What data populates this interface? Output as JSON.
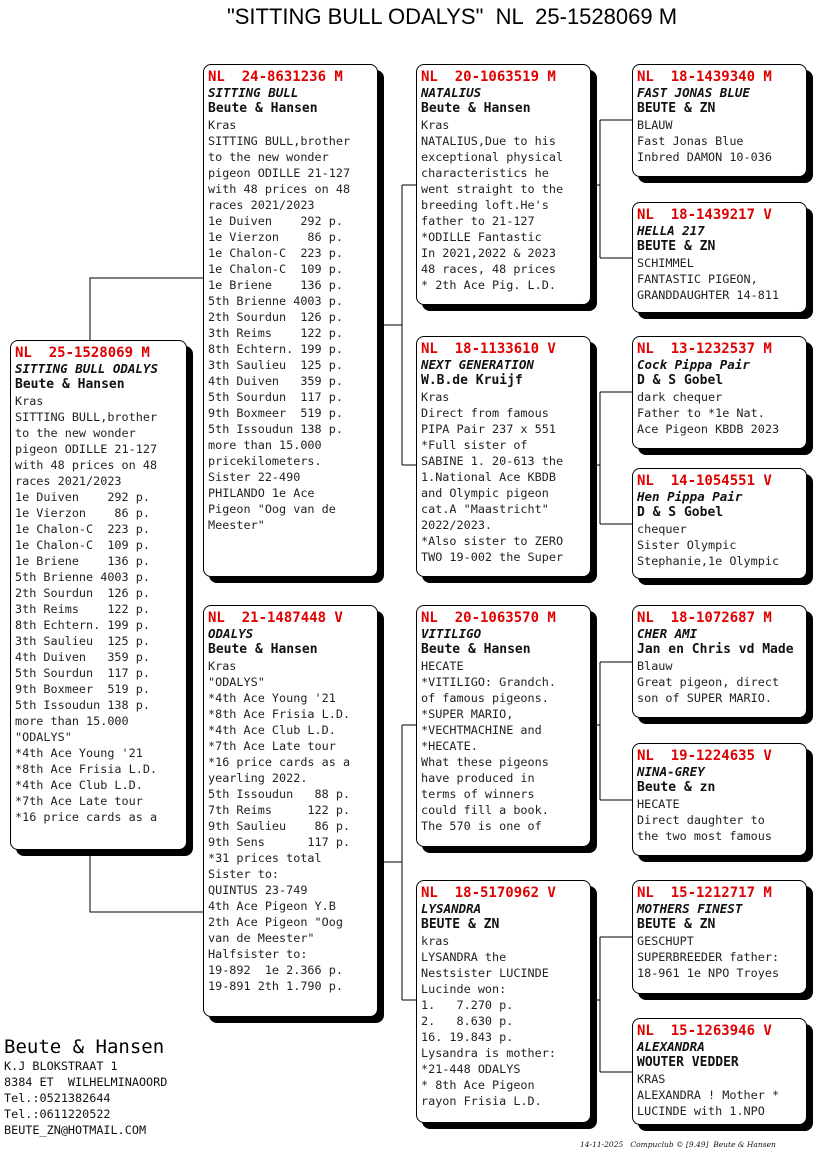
{
  "title": "\"SITTING BULL ODALYS\"  NL  25-1528069 M",
  "pigeons": [
    {
      "ring": "NL  25-1528069 M",
      "name": "SITTING BULL ODALYS",
      "breeder": "Beute & Hansen",
      "color": "Kras",
      "lines": [
        "SITTING BULL,brother",
        "to the new wonder",
        "pigeon ODILLE 21-127",
        "with 48 prices on 48",
        "races 2021/2023",
        "1e Duiven    292 p.",
        "1e Vierzon    86 p.",
        "1e Chalon-C  223 p.",
        "1e Chalon-C  109 p.",
        "1e Briene    136 p.",
        "5th Brienne 4003 p.",
        "2th Sourdun  126 p.",
        "3th Reims    122 p.",
        "8th Echtern. 199 p.",
        "3th Saulieu  125 p.",
        "4th Duiven   359 p.",
        "5th Sourdun  117 p.",
        "9th Boxmeer  519 p.",
        "5th Issoudun 138 p.",
        "more than 15.000",
        "\"ODALYS\"",
        "*4th Ace Young '21",
        "*8th Ace Frisia L.D.",
        "*4th Ace Club L.D.",
        "*7th Ace Late tour",
        "*16 price cards as a"
      ]
    },
    {
      "ring": "NL  24-8631236 M",
      "name": "SITTING BULL",
      "breeder": "Beute & Hansen",
      "color": "Kras",
      "lines": [
        "SITTING BULL,brother",
        "to the new wonder",
        "pigeon ODILLE 21-127",
        "with 48 prices on 48",
        "races 2021/2023",
        "1e Duiven    292 p.",
        "1e Vierzon    86 p.",
        "1e Chalon-C  223 p.",
        "1e Chalon-C  109 p.",
        "1e Briene    136 p.",
        "5th Brienne 4003 p.",
        "2th Sourdun  126 p.",
        "3th Reims    122 p.",
        "8th Echtern. 199 p.",
        "3th Saulieu  125 p.",
        "4th Duiven   359 p.",
        "5th Sourdun  117 p.",
        "9th Boxmeer  519 p.",
        "5th Issoudun 138 p.",
        "more than 15.000",
        "pricekilometers.",
        "Sister 22-490",
        "PHILANDO 1e Ace",
        "Pigeon \"Oog van de",
        "Meester\""
      ]
    },
    {
      "ring": "NL  21-1487448 V",
      "name": "ODALYS",
      "breeder": "Beute & Hansen",
      "color": "Kras",
      "lines": [
        "\"ODALYS\"",
        "*4th Ace Young '21",
        "*8th Ace Frisia L.D.",
        "*4th Ace Club L.D.",
        "*7th Ace Late tour",
        "*16 price cards as a",
        "yearling 2022.",
        "5th Issoudun   88 p.",
        "7th Reims     122 p.",
        "9th Saulieu    86 p.",
        "9th Sens      117 p.",
        "*31 prices total",
        "Sister to:",
        "QUINTUS 23-749",
        "4th Ace Pigeon Y.B",
        "2th Ace Pigeon \"Oog",
        "van de Meester\"",
        "Halfsister to:",
        "19-892  1e 2.366 p.",
        "19-891 2th 1.790 p."
      ]
    },
    {
      "ring": "NL  20-1063519 M",
      "name": "NATALIUS",
      "breeder": "Beute & Hansen",
      "color": "Kras",
      "lines": [
        "NATALIUS,Due to his",
        "exceptional physical",
        "characteristics he",
        "went straight to the",
        "breeding loft.He's",
        "father to 21-127",
        "*ODILLE Fantastic",
        "In 2021,2022 & 2023",
        "48 races, 48 prices",
        "* 2th Ace Pig. L.D."
      ]
    },
    {
      "ring": "NL  18-1133610 V",
      "name": "NEXT GENERATION",
      "breeder": "W.B.de Kruijf",
      "color": "Kras",
      "lines": [
        "Direct from famous",
        "PIPA Pair 237 x 551",
        "*Full sister of",
        "SABINE 1. 20-613 the",
        "1.National Ace KBDB",
        "and Olympic pigeon",
        "cat.A \"Maastricht\"",
        "2022/2023.",
        "*Also sister to ZERO",
        "TWO 19-002 the Super"
      ]
    },
    {
      "ring": "NL  20-1063570 M",
      "name": "VITILIGO",
      "breeder": "Beute & Hansen",
      "color": "HECATE",
      "lines": [
        "*VITILIGO: Grandch.",
        "of famous pigeons.",
        "*SUPER MARIO,",
        "*VECHTMACHINE and",
        "*HECATE.",
        "What these pigeons",
        "have produced in",
        "terms of winners",
        "could fill a book.",
        "The 570 is one of"
      ]
    },
    {
      "ring": "NL  18-5170962 V",
      "name": "LYSANDRA",
      "breeder": "BEUTE & ZN",
      "color": "kras",
      "lines": [
        "LYSANDRA the",
        "Nestsister LUCINDE",
        "Lucinde won:",
        "1.   7.270 p.",
        "2.   8.630 p.",
        "16. 19.843 p.",
        "Lysandra is mother:",
        "*21-448 ODALYS",
        "* 8th Ace Pigeon",
        "rayon Frisia L.D."
      ]
    },
    {
      "ring": "NL  18-1439340 M",
      "name": "FAST JONAS BLUE",
      "breeder": "BEUTE & ZN",
      "color": "BLAUW",
      "lines": [
        "Fast Jonas Blue",
        "Inbred DAMON 10-036"
      ]
    },
    {
      "ring": "NL  18-1439217 V",
      "name": "HELLA 217",
      "breeder": "BEUTE & ZN",
      "color": "SCHIMMEL",
      "lines": [
        "FANTASTIC PIGEON,",
        "GRANDDAUGHTER 14-811"
      ]
    },
    {
      "ring": "NL  13-1232537 M",
      "name": "Cock Pippa Pair",
      "breeder": "D & S Gobel",
      "color": "dark chequer",
      "lines": [
        "Father to *1e Nat.",
        "Ace Pigeon KBDB 2023"
      ]
    },
    {
      "ring": "NL  14-1054551 V",
      "name": "Hen Pippa Pair",
      "breeder": "D & S Gobel",
      "color": "chequer",
      "lines": [
        "Sister Olympic",
        "Stephanie,1e Olympic"
      ]
    },
    {
      "ring": "NL  18-1072687 M",
      "name": "CHER AMI",
      "breeder": "Jan en Chris vd Made",
      "color": "Blauw",
      "lines": [
        "Great pigeon, direct",
        "son of SUPER MARIO."
      ]
    },
    {
      "ring": "NL  19-1224635 V",
      "name": "NINA-GREY",
      "breeder": "Beute & zn",
      "color": "HECATE",
      "lines": [
        "Direct daughter to",
        "the two most famous"
      ]
    },
    {
      "ring": "NL  15-1212717 M",
      "name": "MOTHERS FINEST",
      "breeder": "BEUTE & ZN",
      "color": "GESCHUPT",
      "lines": [
        "SUPERBREEDER father:",
        "18-961 1e NPO Troyes"
      ]
    },
    {
      "ring": "NL  15-1263946 V",
      "name": "ALEXANDRA",
      "breeder": "WOUTER VEDDER",
      "color": "KRAS",
      "lines": [
        "ALEXANDRA ! Mother *",
        "LUCINDE with 1.NPO"
      ]
    }
  ],
  "owner": {
    "name": "Beute & Hansen",
    "lines": [
      "K.J BLOKSTRAAT 1",
      "8384 ET  WILHELMINAOORD",
      "Tel.:0521382644",
      "Tel.:0611220522",
      "BEUTE_ZN@HOTMAIL.COM"
    ]
  },
  "footer": "14-11-2025   Compuclub © [9.49]  Beute & Hansen",
  "colors": {
    "ring": "#e00000",
    "border": "#000000"
  }
}
